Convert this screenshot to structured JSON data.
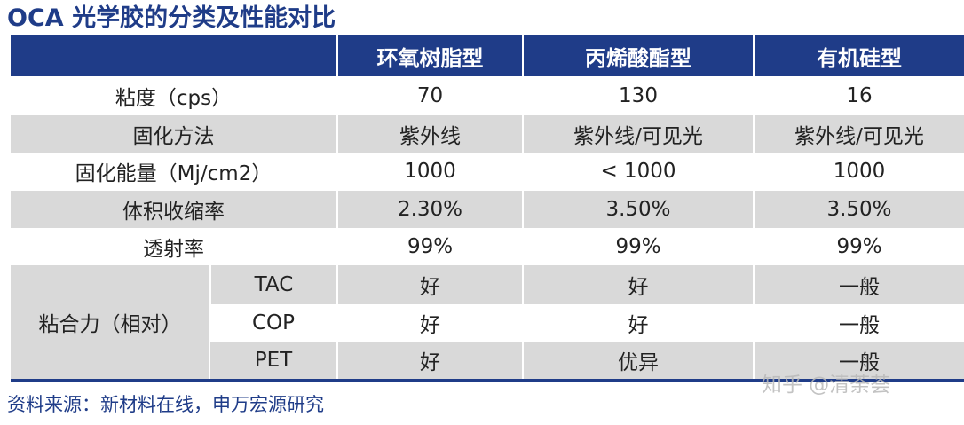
{
  "title": "OCA 光学胶的分类及性能对比",
  "table": {
    "headers": [
      "",
      "环氧树脂型",
      "丙烯酸酯型",
      "有机硅型"
    ],
    "rows": [
      {
        "label": "粘度（cps）",
        "values": [
          "70",
          "130",
          "16"
        ]
      },
      {
        "label": "固化方法",
        "values": [
          "紫外线",
          "紫外线/可见光",
          "紫外线/可见光"
        ]
      },
      {
        "label": "固化能量（Mj/cm2）",
        "values": [
          "1000",
          "< 1000",
          "1000"
        ]
      },
      {
        "label": "体积收缩率",
        "values": [
          "2.30%",
          "3.50%",
          "3.50%"
        ]
      },
      {
        "label": "透射率",
        "values": [
          "99%",
          "99%",
          "99%"
        ]
      }
    ],
    "adhesion": {
      "label": "粘合力（相对）",
      "rows": [
        {
          "substrate": "TAC",
          "values": [
            "好",
            "好",
            "一般"
          ]
        },
        {
          "substrate": "COP",
          "values": [
            "好",
            "好",
            "一般"
          ]
        },
        {
          "substrate": "PET",
          "values": [
            "好",
            "优异",
            "一般"
          ]
        }
      ]
    }
  },
  "source": "资料来源：新材料在线，申万宏源研究",
  "watermark": "知乎 @清荼荟",
  "colors": {
    "header_bg": "#1f3c88",
    "stripe": "#d9d9d9",
    "title": "#1f3c88"
  }
}
